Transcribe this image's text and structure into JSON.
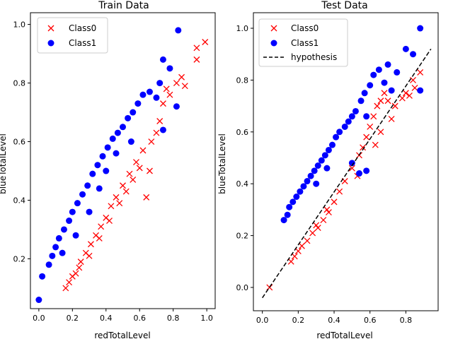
{
  "colors": {
    "class0": "#ff0000",
    "class1": "#0000ff",
    "hypothesis": "#000000"
  },
  "chart_data": [
    {
      "type": "scatter",
      "title": "Train Data",
      "xlabel": "redTotalLevel",
      "ylabel": "blueTotalLevel",
      "xlim": [
        -0.05,
        1.05
      ],
      "ylim": [
        0.03,
        1.04
      ],
      "xticks": [
        0.0,
        0.2,
        0.4,
        0.6,
        0.8,
        1.0
      ],
      "yticks": [
        0.2,
        0.4,
        0.6,
        0.8,
        1.0
      ],
      "grid": false,
      "legend": "top-left",
      "series": [
        {
          "name": "Class0",
          "marker": "x",
          "color": "#ff0000",
          "points": [
            [
              0.16,
              0.1
            ],
            [
              0.18,
              0.12
            ],
            [
              0.22,
              0.15
            ],
            [
              0.25,
              0.19
            ],
            [
              0.28,
              0.22
            ],
            [
              0.31,
              0.25
            ],
            [
              0.34,
              0.28
            ],
            [
              0.37,
              0.31
            ],
            [
              0.4,
              0.34
            ],
            [
              0.43,
              0.38
            ],
            [
              0.46,
              0.41
            ],
            [
              0.5,
              0.45
            ],
            [
              0.54,
              0.49
            ],
            [
              0.58,
              0.53
            ],
            [
              0.62,
              0.57
            ],
            [
              0.64,
              0.41
            ],
            [
              0.66,
              0.5
            ],
            [
              0.67,
              0.6
            ],
            [
              0.7,
              0.63
            ],
            [
              0.72,
              0.67
            ],
            [
              0.74,
              0.73
            ],
            [
              0.76,
              0.78
            ],
            [
              0.78,
              0.76
            ],
            [
              0.82,
              0.8
            ],
            [
              0.85,
              0.82
            ],
            [
              0.87,
              0.79
            ],
            [
              0.94,
              0.88
            ],
            [
              0.94,
              0.92
            ],
            [
              0.99,
              0.94
            ],
            [
              0.2,
              0.14
            ],
            [
              0.24,
              0.17
            ],
            [
              0.3,
              0.21
            ],
            [
              0.36,
              0.27
            ],
            [
              0.42,
              0.33
            ],
            [
              0.48,
              0.39
            ],
            [
              0.52,
              0.43
            ],
            [
              0.56,
              0.47
            ],
            [
              0.6,
              0.51
            ]
          ]
        },
        {
          "name": "Class1",
          "marker": "o",
          "color": "#0000ff",
          "points": [
            [
              0.0,
              0.06
            ],
            [
              0.02,
              0.14
            ],
            [
              0.06,
              0.18
            ],
            [
              0.08,
              0.21
            ],
            [
              0.1,
              0.24
            ],
            [
              0.12,
              0.27
            ],
            [
              0.15,
              0.3
            ],
            [
              0.18,
              0.33
            ],
            [
              0.2,
              0.36
            ],
            [
              0.23,
              0.39
            ],
            [
              0.26,
              0.42
            ],
            [
              0.29,
              0.45
            ],
            [
              0.32,
              0.49
            ],
            [
              0.35,
              0.52
            ],
            [
              0.38,
              0.55
            ],
            [
              0.41,
              0.58
            ],
            [
              0.44,
              0.61
            ],
            [
              0.47,
              0.63
            ],
            [
              0.5,
              0.65
            ],
            [
              0.53,
              0.68
            ],
            [
              0.56,
              0.7
            ],
            [
              0.59,
              0.73
            ],
            [
              0.62,
              0.76
            ],
            [
              0.66,
              0.77
            ],
            [
              0.7,
              0.75
            ],
            [
              0.72,
              0.8
            ],
            [
              0.74,
              0.88
            ],
            [
              0.74,
              0.64
            ],
            [
              0.78,
              0.85
            ],
            [
              0.82,
              0.72
            ],
            [
              0.83,
              0.98
            ],
            [
              0.14,
              0.22
            ],
            [
              0.22,
              0.28
            ],
            [
              0.3,
              0.36
            ],
            [
              0.36,
              0.44
            ],
            [
              0.4,
              0.5
            ],
            [
              0.46,
              0.56
            ],
            [
              0.55,
              0.6
            ]
          ]
        }
      ]
    },
    {
      "type": "scatter",
      "title": "Test Data",
      "xlabel": "redTotalLevel",
      "ylabel": "blueTotalLevel",
      "xlim": [
        -0.05,
        0.98
      ],
      "ylim": [
        -0.09,
        1.06
      ],
      "xticks": [
        0.0,
        0.2,
        0.4,
        0.6,
        0.8
      ],
      "yticks": [
        0.0,
        0.2,
        0.4,
        0.6,
        0.8,
        1.0
      ],
      "grid": false,
      "legend": "top-left",
      "series": [
        {
          "name": "Class0",
          "marker": "x",
          "color": "#ff0000",
          "points": [
            [
              0.04,
              0.0
            ],
            [
              0.16,
              0.1
            ],
            [
              0.18,
              0.12
            ],
            [
              0.2,
              0.14
            ],
            [
              0.22,
              0.16
            ],
            [
              0.25,
              0.18
            ],
            [
              0.28,
              0.21
            ],
            [
              0.31,
              0.23
            ],
            [
              0.34,
              0.26
            ],
            [
              0.37,
              0.29
            ],
            [
              0.4,
              0.33
            ],
            [
              0.43,
              0.37
            ],
            [
              0.46,
              0.41
            ],
            [
              0.5,
              0.46
            ],
            [
              0.54,
              0.51
            ],
            [
              0.56,
              0.54
            ],
            [
              0.58,
              0.58
            ],
            [
              0.6,
              0.62
            ],
            [
              0.62,
              0.66
            ],
            [
              0.64,
              0.7
            ],
            [
              0.66,
              0.72
            ],
            [
              0.68,
              0.75
            ],
            [
              0.7,
              0.72
            ],
            [
              0.72,
              0.65
            ],
            [
              0.74,
              0.7
            ],
            [
              0.78,
              0.73
            ],
            [
              0.8,
              0.75
            ],
            [
              0.82,
              0.74
            ],
            [
              0.84,
              0.8
            ],
            [
              0.85,
              0.77
            ],
            [
              0.88,
              0.83
            ],
            [
              0.63,
              0.55
            ],
            [
              0.66,
              0.6
            ],
            [
              0.53,
              0.43
            ],
            [
              0.36,
              0.3
            ],
            [
              0.3,
              0.24
            ]
          ]
        },
        {
          "name": "Class1",
          "marker": "o",
          "color": "#0000ff",
          "points": [
            [
              0.12,
              0.26
            ],
            [
              0.14,
              0.28
            ],
            [
              0.15,
              0.31
            ],
            [
              0.17,
              0.33
            ],
            [
              0.19,
              0.35
            ],
            [
              0.21,
              0.37
            ],
            [
              0.23,
              0.39
            ],
            [
              0.25,
              0.41
            ],
            [
              0.27,
              0.43
            ],
            [
              0.29,
              0.45
            ],
            [
              0.31,
              0.47
            ],
            [
              0.33,
              0.49
            ],
            [
              0.35,
              0.51
            ],
            [
              0.37,
              0.53
            ],
            [
              0.39,
              0.55
            ],
            [
              0.41,
              0.58
            ],
            [
              0.43,
              0.6
            ],
            [
              0.46,
              0.62
            ],
            [
              0.48,
              0.64
            ],
            [
              0.5,
              0.66
            ],
            [
              0.52,
              0.68
            ],
            [
              0.55,
              0.72
            ],
            [
              0.57,
              0.75
            ],
            [
              0.6,
              0.78
            ],
            [
              0.62,
              0.82
            ],
            [
              0.65,
              0.84
            ],
            [
              0.68,
              0.79
            ],
            [
              0.7,
              0.86
            ],
            [
              0.72,
              0.76
            ],
            [
              0.75,
              0.83
            ],
            [
              0.8,
              0.92
            ],
            [
              0.84,
              0.9
            ],
            [
              0.88,
              1.0
            ],
            [
              0.88,
              0.76
            ],
            [
              0.58,
              0.66
            ],
            [
              0.5,
              0.48
            ],
            [
              0.54,
              0.44
            ],
            [
              0.58,
              0.45
            ],
            [
              0.3,
              0.4
            ],
            [
              0.36,
              0.46
            ]
          ]
        },
        {
          "name": "hypothesis",
          "marker": "line",
          "style": "dashed",
          "color": "#000000",
          "points": [
            [
              0.0,
              -0.04
            ],
            [
              0.94,
              0.92
            ]
          ]
        }
      ]
    }
  ]
}
